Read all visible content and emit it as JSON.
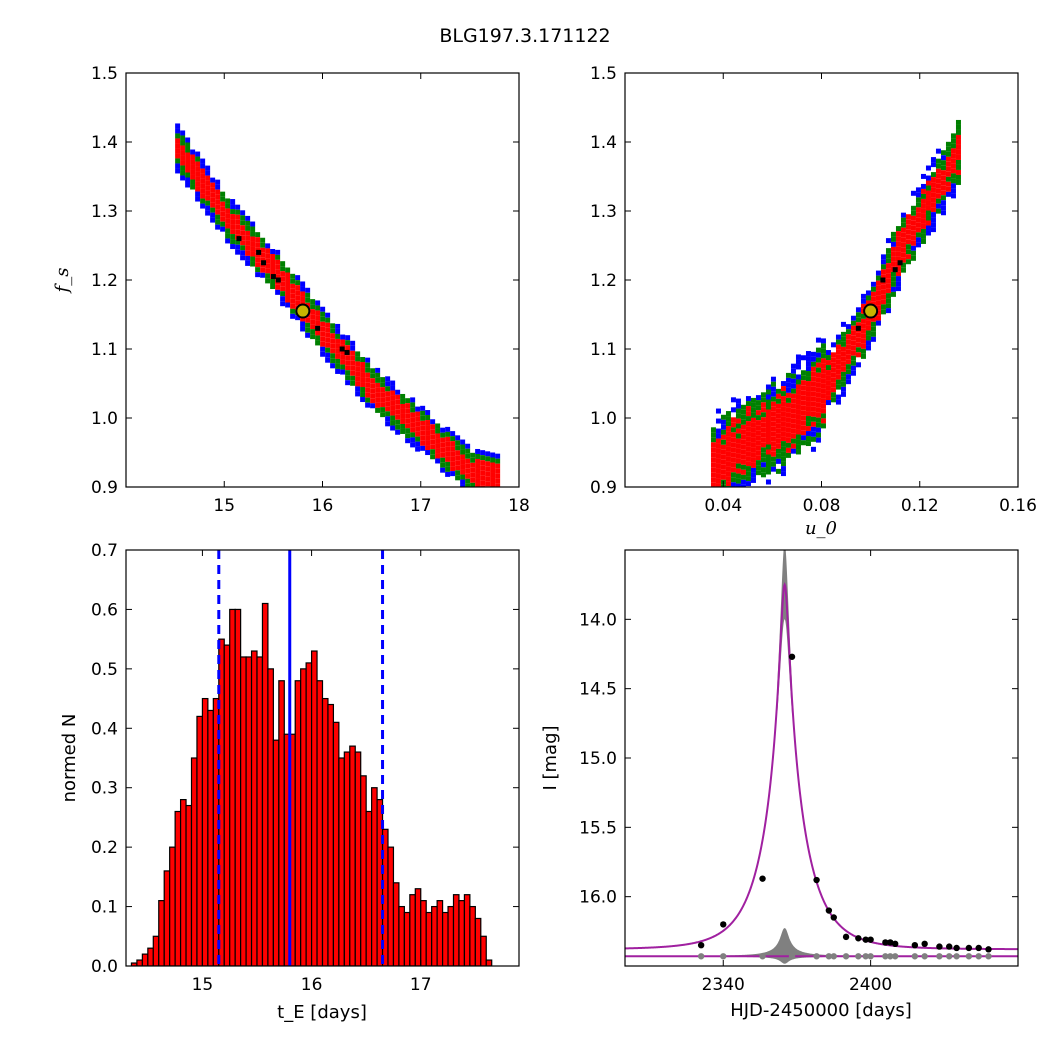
{
  "figure_title": "BLG197.3.171122",
  "colors": {
    "sigma1": "#ff0000",
    "sigma2": "#008000",
    "sigma3": "#0000ff",
    "best_fit": "#000000",
    "marker_fill": "#c8b400",
    "hist_fill": "#ff0000",
    "hist_edge": "#000000",
    "model_line": "#a020a0",
    "residual": "#808080",
    "median_line": "#0000ff"
  },
  "chart_data": [
    {
      "type": "heatmap",
      "panel": "top-left",
      "xlabel": "",
      "ylabel": "f_s",
      "xlim": [
        14.0,
        18.0
      ],
      "ylim": [
        0.9,
        1.5
      ],
      "xticks": [
        "15",
        "16",
        "17",
        "18"
      ],
      "yticks": [
        "0.9",
        "1.0",
        "1.1",
        "1.2",
        "1.3",
        "1.4",
        "1.5"
      ],
      "levels": [
        "1-sigma (red)",
        "2-sigma (green)",
        "3-sigma (blue)"
      ],
      "band_centerline": [
        [
          14.5,
          1.395
        ],
        [
          15.0,
          1.295
        ],
        [
          15.5,
          1.215
        ],
        [
          16.0,
          1.125
        ],
        [
          16.5,
          1.045
        ],
        [
          17.0,
          0.985
        ],
        [
          17.5,
          0.925
        ],
        [
          17.8,
          0.915
        ]
      ],
      "best_fit": {
        "x": 15.8,
        "y": 1.155
      },
      "dark_points": [
        [
          15.15,
          1.26
        ],
        [
          15.35,
          1.24
        ],
        [
          15.4,
          1.225
        ],
        [
          15.5,
          1.205
        ],
        [
          15.55,
          1.2
        ],
        [
          15.95,
          1.13
        ],
        [
          16.2,
          1.1
        ],
        [
          16.25,
          1.095
        ]
      ]
    },
    {
      "type": "heatmap",
      "panel": "top-right",
      "xlabel": "u_0",
      "ylabel": "",
      "xlim": [
        0.0,
        0.16
      ],
      "ylim": [
        0.9,
        1.5
      ],
      "xticks": [
        "0.04",
        "0.08",
        "0.12",
        "0.16"
      ],
      "yticks": [
        "0.9",
        "1.0",
        "1.1",
        "1.2",
        "1.3",
        "1.4",
        "1.5"
      ],
      "levels": [
        "1-sigma (red)",
        "2-sigma (green)",
        "3-sigma (blue)"
      ],
      "band_centerline": [
        [
          0.035,
          0.93
        ],
        [
          0.05,
          0.97
        ],
        [
          0.065,
          1.0
        ],
        [
          0.08,
          1.045
        ],
        [
          0.09,
          1.1
        ],
        [
          0.1,
          1.16
        ],
        [
          0.11,
          1.24
        ],
        [
          0.12,
          1.3
        ],
        [
          0.13,
          1.36
        ],
        [
          0.135,
          1.39
        ]
      ],
      "best_fit": {
        "x": 0.1,
        "y": 1.155
      },
      "dark_points": [
        [
          0.105,
          1.2
        ],
        [
          0.11,
          1.215
        ],
        [
          0.112,
          1.225
        ],
        [
          0.095,
          1.13
        ]
      ]
    },
    {
      "type": "bar",
      "panel": "bottom-left",
      "xlabel": "t_E [days]",
      "ylabel": "normed N",
      "xlim": [
        14.3,
        17.9
      ],
      "ylim": [
        0.0,
        0.7
      ],
      "xticks": [
        "15",
        "16",
        "17"
      ],
      "yticks": [
        "0.0",
        "0.1",
        "0.2",
        "0.3",
        "0.4",
        "0.5",
        "0.6",
        "0.7"
      ],
      "bin_start": 14.35,
      "bin_width": 0.05,
      "values": [
        0.005,
        0.01,
        0.02,
        0.03,
        0.05,
        0.11,
        0.16,
        0.2,
        0.26,
        0.28,
        0.27,
        0.35,
        0.42,
        0.45,
        0.43,
        0.45,
        0.55,
        0.54,
        0.6,
        0.6,
        0.52,
        0.52,
        0.53,
        0.52,
        0.61,
        0.5,
        0.38,
        0.48,
        0.39,
        0.39,
        0.48,
        0.5,
        0.51,
        0.53,
        0.48,
        0.45,
        0.44,
        0.41,
        0.35,
        0.36,
        0.37,
        0.36,
        0.32,
        0.26,
        0.3,
        0.28,
        0.23,
        0.2,
        0.14,
        0.1,
        0.09,
        0.12,
        0.13,
        0.11,
        0.09,
        0.1,
        0.11,
        0.09,
        0.1,
        0.12,
        0.11,
        0.12,
        0.1,
        0.08,
        0.05,
        0.01
      ],
      "median": 15.8,
      "interval": [
        15.15,
        16.65
      ]
    },
    {
      "type": "line",
      "panel": "bottom-right",
      "xlabel": "HJD-2450000 [days]",
      "ylabel": "I [mag]",
      "xlim": [
        2300,
        2460
      ],
      "ylim": [
        16.5,
        13.5
      ],
      "ylim_inverted": true,
      "xticks": [
        "2340",
        "2400"
      ],
      "yticks": [
        "14.0",
        "14.5",
        "15.0",
        "15.5",
        "16.0"
      ],
      "model": {
        "t0": 2365.0,
        "tE": 15.8,
        "u0": 0.1,
        "baseline": 16.38,
        "peak": 13.75
      },
      "points": [
        [
          2331,
          16.35
        ],
        [
          2340,
          16.2
        ],
        [
          2356,
          15.87
        ],
        [
          2368,
          14.27
        ],
        [
          2378,
          15.88
        ],
        [
          2383,
          16.1
        ],
        [
          2385,
          16.15
        ],
        [
          2390,
          16.29
        ],
        [
          2395,
          16.3
        ],
        [
          2398,
          16.31
        ],
        [
          2400,
          16.31
        ],
        [
          2406,
          16.33
        ],
        [
          2408,
          16.33
        ],
        [
          2410,
          16.34
        ],
        [
          2418,
          16.35
        ],
        [
          2422,
          16.34
        ],
        [
          2428,
          16.36
        ],
        [
          2432,
          16.36
        ],
        [
          2435,
          16.37
        ],
        [
          2440,
          16.37
        ],
        [
          2444,
          16.37
        ],
        [
          2448,
          16.38
        ]
      ],
      "residual_baseline": 16.43
    }
  ]
}
